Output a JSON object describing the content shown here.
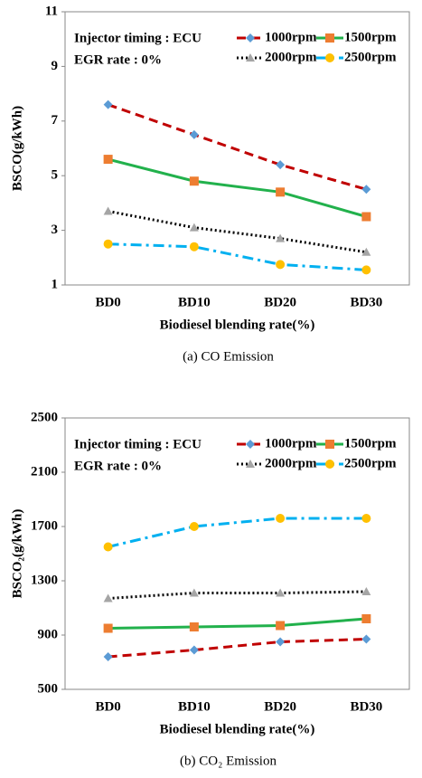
{
  "chart_data": [
    {
      "type": "line",
      "xlabel": "Biodiesel blending rate(%)",
      "ylabel": "BSCO(g/kWh)",
      "caption": "(a)  CO  Emission",
      "annotations": [
        "Injector timing : ECU",
        "EGR rate : 0%"
      ],
      "categories": [
        "BD0",
        "BD10",
        "BD20",
        "BD30"
      ],
      "ylim": [
        1,
        11
      ],
      "yticks": [
        1,
        3,
        5,
        7,
        9,
        11
      ],
      "series": [
        {
          "name": "1000rpm",
          "color": "#c00000",
          "marker_color": "#5b9bd5",
          "marker": "diamond",
          "line_style": "dashed",
          "values": [
            7.6,
            6.5,
            5.4,
            4.5
          ]
        },
        {
          "name": "1500rpm",
          "color": "#22b14c",
          "marker_color": "#ed7d31",
          "marker": "square",
          "line_style": "solid",
          "values": [
            5.6,
            4.8,
            4.4,
            3.5
          ]
        },
        {
          "name": "2000rpm",
          "color": "#000000",
          "marker_color": "#a5a5a5",
          "marker": "triangle",
          "line_style": "dotted",
          "values": [
            3.7,
            3.1,
            2.7,
            2.2
          ]
        },
        {
          "name": "2500rpm",
          "color": "#00b0f0",
          "marker_color": "#ffc000",
          "marker": "circle",
          "line_style": "dashdot",
          "values": [
            2.5,
            2.4,
            1.75,
            1.55
          ]
        }
      ]
    },
    {
      "type": "line",
      "xlabel": "Biodiesel blending rate(%)",
      "ylabel": "BSCO₂(g/kWh)",
      "caption": "(b)  CO₂  Emission",
      "annotations": [
        "Injector timing : ECU",
        "EGR rate : 0%"
      ],
      "categories": [
        "BD0",
        "BD10",
        "BD20",
        "BD30"
      ],
      "ylim": [
        500,
        2500
      ],
      "yticks": [
        500,
        900,
        1300,
        1700,
        2100,
        2500
      ],
      "series": [
        {
          "name": "1000rpm",
          "color": "#c00000",
          "marker_color": "#5b9bd5",
          "marker": "diamond",
          "line_style": "dashed",
          "values": [
            740,
            790,
            850,
            870
          ]
        },
        {
          "name": "1500rpm",
          "color": "#22b14c",
          "marker_color": "#ed7d31",
          "marker": "square",
          "line_style": "solid",
          "values": [
            950,
            960,
            970,
            1020
          ]
        },
        {
          "name": "2000rpm",
          "color": "#000000",
          "marker_color": "#a5a5a5",
          "marker": "triangle",
          "line_style": "dotted",
          "values": [
            1170,
            1210,
            1210,
            1220
          ]
        },
        {
          "name": "2500rpm",
          "color": "#00b0f0",
          "marker_color": "#ffc000",
          "marker": "circle",
          "line_style": "dashdot",
          "values": [
            1550,
            1700,
            1760,
            1760
          ]
        }
      ]
    }
  ]
}
